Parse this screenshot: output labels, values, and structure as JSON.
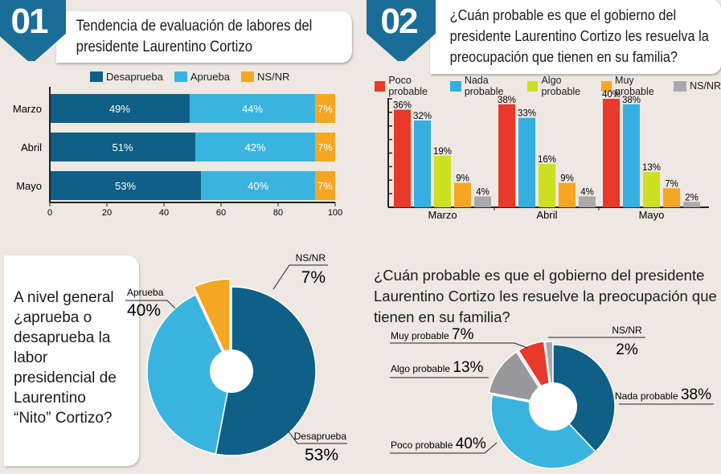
{
  "section1": {
    "number": "01",
    "title": "Tendencia de evaluación de labores del presidente Laurentino Cortizo"
  },
  "section2": {
    "number": "02",
    "title": "¿Cuán probable es que el gobierno del presidente Laurentino Cortizo les resuelva la preocupación que tienen en su familia?"
  },
  "section3": {
    "question": "A nivel general ¿aprueba o desaprueba la labor presidencial de Laurentino “Nito” Cortizo?"
  },
  "section4": {
    "question": "¿Cuán probable es que el gobierno del presidente Laurentino Cortizo les resuelve la preocupación que tienen en su familia?"
  },
  "chart_data": [
    {
      "type": "bar",
      "orientation": "horizontal",
      "stacked": true,
      "categories": [
        "Marzo",
        "Abril",
        "Mayo"
      ],
      "series": [
        {
          "name": "Desaprueba",
          "values": [
            49,
            51,
            53
          ],
          "labels": [
            "49%",
            "51%",
            "53%"
          ],
          "color": "#0f5f86"
        },
        {
          "name": "Aprueba",
          "values": [
            44,
            42,
            40
          ],
          "labels": [
            "44%",
            "42%",
            "40%"
          ],
          "color": "#3ab4df"
        },
        {
          "name": "NS/NR",
          "values": [
            7,
            7,
            7
          ],
          "labels": [
            "7%",
            "7%",
            "7%"
          ],
          "color": "#f5a623"
        }
      ],
      "xlim": [
        0,
        100
      ],
      "xticks": [
        "0",
        "20",
        "40",
        "60",
        "80",
        "100"
      ],
      "legend": "top"
    },
    {
      "type": "bar",
      "orientation": "vertical",
      "categories": [
        "Marzo",
        "Abril",
        "Mayo"
      ],
      "series": [
        {
          "name": "Poco probable",
          "values": [
            36,
            38,
            40
          ],
          "labels": [
            "36%",
            "38%",
            "40%"
          ],
          "color": "#e8392b"
        },
        {
          "name": "Nada probable",
          "values": [
            32,
            33,
            38
          ],
          "labels": [
            "32%",
            "33%",
            "38%"
          ],
          "color": "#35afe0"
        },
        {
          "name": "Algo probable",
          "values": [
            19,
            16,
            13
          ],
          "labels": [
            "19%",
            "16%",
            "13%"
          ],
          "color": "#cde021"
        },
        {
          "name": "Muy probable",
          "values": [
            9,
            9,
            7
          ],
          "labels": [
            "9%",
            "9%",
            "7%"
          ],
          "color": "#f5a623"
        },
        {
          "name": "NS/NR",
          "values": [
            4,
            4,
            2
          ],
          "labels": [
            "4%",
            "4%",
            "2%"
          ],
          "color": "#a9a9ab"
        }
      ],
      "ylim": [
        0,
        40
      ],
      "legend": "top"
    },
    {
      "type": "pie",
      "donut": true,
      "slices": [
        {
          "name": "Desaprueba",
          "value": 53,
          "label": "53%",
          "color": "#0f5f86"
        },
        {
          "name": "Aprueba",
          "value": 40,
          "label": "40%",
          "color": "#3ab4df"
        },
        {
          "name": "NS/NR",
          "value": 7,
          "label": "7%",
          "color": "#f5a623"
        }
      ]
    },
    {
      "type": "pie",
      "donut": true,
      "slices": [
        {
          "name": "Nada probable",
          "value": 38,
          "label": "38%",
          "color": "#0f5f86"
        },
        {
          "name": "Poco probable",
          "value": 40,
          "label": "40%",
          "color": "#3ab4df"
        },
        {
          "name": "Algo probable",
          "value": 13,
          "label": "13%",
          "color": "#98989b"
        },
        {
          "name": "Muy probable",
          "value": 7,
          "label": "7%",
          "color": "#e8392b"
        },
        {
          "name": "NS/NR",
          "value": 2,
          "label": "2%",
          "color": "#a9a9ab"
        }
      ]
    }
  ]
}
